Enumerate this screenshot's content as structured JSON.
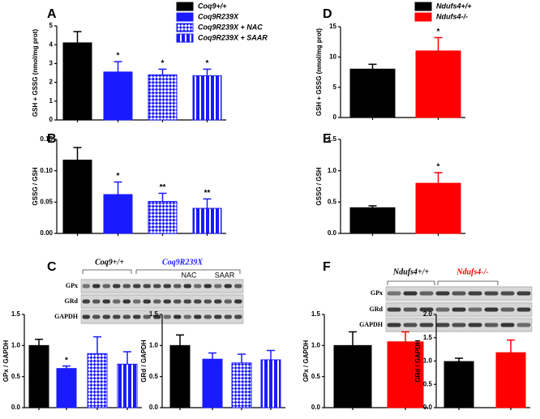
{
  "panels": [
    "A",
    "B",
    "C",
    "D",
    "E",
    "F"
  ],
  "blots": {
    "C": {
      "groups": [
        "Coq9+/+",
        "Coq9R239X"
      ],
      "subgroups": [
        "NAC",
        "SAAR"
      ],
      "rows": [
        "GPx",
        "GRd",
        "GAPDH"
      ]
    },
    "F": {
      "groups": [
        "Ndufs4+/+",
        "Ndufs4-/-"
      ],
      "rows": [
        "GPx",
        "GRd",
        "GAPDH"
      ]
    }
  },
  "chart_data": [
    {
      "type": "bar",
      "ylabel": "GSH + GSSG (nmol/mg prot)",
      "categories": [
        "Coq9+/+",
        "Coq9R239X",
        "Coq9R239X + NAC",
        "Coq9R239X + SAAR"
      ],
      "legend": true,
      "values": [
        4.1,
        2.55,
        2.4,
        2.35
      ],
      "errors": [
        0.6,
        0.55,
        0.3,
        0.35
      ],
      "colors": [
        "#000000",
        "#1a1aff",
        "#1a1aff",
        "#1a1aff"
      ],
      "patterns": [
        "solid",
        "solid",
        "checker",
        "stripes"
      ],
      "ylim": [
        0,
        5
      ],
      "yticks": [
        0,
        1,
        2,
        3,
        4,
        5
      ],
      "annotations": [
        {
          "index": 1,
          "text": "*"
        },
        {
          "index": 2,
          "text": "*"
        },
        {
          "index": 3,
          "text": "*"
        }
      ]
    },
    {
      "type": "bar",
      "ylabel": "GSSG / GSH",
      "values": [
        0.117,
        0.062,
        0.051,
        0.04
      ],
      "errors": [
        0.02,
        0.02,
        0.013,
        0.015
      ],
      "colors": [
        "#000000",
        "#1a1aff",
        "#1a1aff",
        "#1a1aff"
      ],
      "patterns": [
        "solid",
        "solid",
        "checker",
        "stripes"
      ],
      "ylim": [
        0,
        0.15
      ],
      "yticks": [
        {
          "value": 0,
          "label": "0.00"
        },
        0.05,
        {
          "value": 0.1,
          "label": "0.10"
        },
        0.15
      ],
      "annotations": [
        {
          "index": 1,
          "text": "*"
        },
        {
          "index": 2,
          "text": "**"
        },
        {
          "index": 3,
          "text": "**"
        }
      ]
    },
    {
      "type": "bar",
      "ylabel": "GSH + GSSG (nmol/mg prot)",
      "categories": [
        "Ndufs4+/+",
        "Ndufs4-/-"
      ],
      "legend": true,
      "values": [
        8.0,
        11.0
      ],
      "errors": [
        0.8,
        2.2
      ],
      "colors": [
        "#000000",
        "#ff0000"
      ],
      "patterns": [
        "solid",
        "solid"
      ],
      "ylim": [
        0,
        15
      ],
      "yticks": [
        0,
        5,
        10,
        15
      ],
      "annotations": [
        {
          "index": 1,
          "text": "*"
        }
      ]
    },
    {
      "type": "bar",
      "ylabel": "GSSG / GSH",
      "values": [
        0.41,
        0.8
      ],
      "errors": [
        0.03,
        0.17
      ],
      "colors": [
        "#000000",
        "#ff0000"
      ],
      "patterns": [
        "solid",
        "solid"
      ],
      "ylim": [
        0,
        1.5
      ],
      "yticks": [
        {
          "value": 0,
          "label": "0.0"
        },
        0.5,
        {
          "value": 1,
          "label": "1.0"
        },
        1.5
      ],
      "annotations": [
        {
          "index": 1,
          "text": "*"
        }
      ]
    },
    {
      "type": "bar",
      "ylabel": "GPx / GAPDH",
      "values": [
        1.0,
        0.63,
        0.87,
        0.7
      ],
      "errors": [
        0.1,
        0.04,
        0.27,
        0.2
      ],
      "colors": [
        "#000000",
        "#1a1aff",
        "#1a1aff",
        "#1a1aff"
      ],
      "patterns": [
        "solid",
        "solid",
        "checker",
        "stripes"
      ],
      "ylim": [
        0,
        1.5
      ],
      "yticks": [
        {
          "value": 0,
          "label": "0.0"
        },
        0.5,
        {
          "value": 1,
          "label": "1.0"
        },
        1.5
      ],
      "annotations": [
        {
          "index": 1,
          "text": "*"
        }
      ]
    },
    {
      "type": "bar",
      "ylabel": "GRd / GAPDH",
      "values": [
        1.0,
        0.78,
        0.72,
        0.77
      ],
      "errors": [
        0.17,
        0.1,
        0.14,
        0.15
      ],
      "colors": [
        "#000000",
        "#1a1aff",
        "#1a1aff",
        "#1a1aff"
      ],
      "patterns": [
        "solid",
        "solid",
        "checker",
        "stripes"
      ],
      "ylim": [
        0,
        1.5
      ],
      "yticks": [
        {
          "value": 0,
          "label": "0.0"
        },
        0.5,
        {
          "value": 1,
          "label": "1.0"
        },
        1.5
      ]
    },
    {
      "type": "bar",
      "ylabel": "GPx / GAPDH",
      "values": [
        1.0,
        1.06
      ],
      "errors": [
        0.22,
        0.16
      ],
      "colors": [
        "#000000",
        "#ff0000"
      ],
      "patterns": [
        "solid",
        "solid"
      ],
      "ylim": [
        0,
        1.5
      ],
      "yticks": [
        {
          "value": 0,
          "label": "0.0"
        },
        0.5,
        {
          "value": 1,
          "label": "1.0"
        },
        1.5
      ]
    },
    {
      "type": "bar",
      "ylabel": "GRd / GAPDH",
      "values": [
        0.99,
        1.18
      ],
      "errors": [
        0.07,
        0.27
      ],
      "colors": [
        "#000000",
        "#ff0000"
      ],
      "patterns": [
        "solid",
        "solid"
      ],
      "ylim": [
        0,
        2
      ],
      "yticks": [
        {
          "value": 0,
          "label": "0.0"
        },
        0.5,
        {
          "value": 1,
          "label": "1.0"
        },
        1.5,
        {
          "value": 2,
          "label": "2.0"
        }
      ]
    }
  ]
}
